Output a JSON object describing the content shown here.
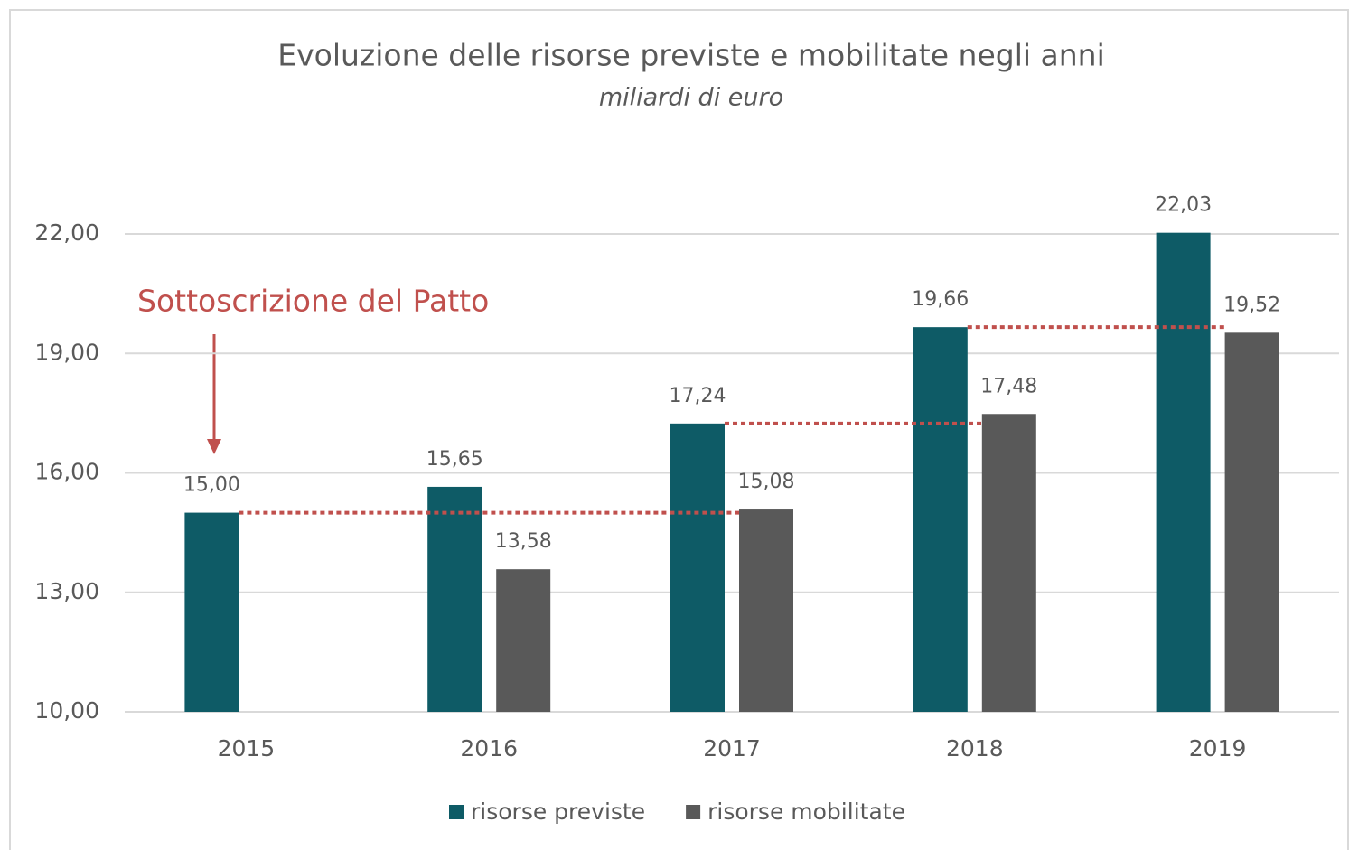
{
  "chart_data": {
    "type": "bar",
    "title": "Evoluzione delle risorse previste e mobilitate negli anni",
    "subtitle": "miliardi di euro",
    "annotation": "Sottoscrizione del Patto",
    "categories": [
      "2015",
      "2016",
      "2017",
      "2018",
      "2019"
    ],
    "series": [
      {
        "name": "risorse previste",
        "color": "#0e5b66",
        "values": [
          15.0,
          15.65,
          17.24,
          19.66,
          22.03
        ],
        "value_labels": [
          "15,00",
          "15,65",
          "17,24",
          "19,66",
          "22,03"
        ]
      },
      {
        "name": "risorse mobilitate",
        "color": "#595959",
        "values": [
          null,
          13.58,
          15.08,
          17.48,
          19.52
        ],
        "value_labels": [
          null,
          "13,58",
          "15,08",
          "17,48",
          "19,52"
        ]
      }
    ],
    "ylim": [
      10,
      22
    ],
    "yticks": [
      {
        "value": 10,
        "label": "10,00"
      },
      {
        "value": 13,
        "label": "13,00"
      },
      {
        "value": 16,
        "label": "16,00"
      },
      {
        "value": 19,
        "label": "19,00"
      },
      {
        "value": 22,
        "label": "22,00"
      }
    ],
    "grid": true,
    "legend": "bottom"
  }
}
